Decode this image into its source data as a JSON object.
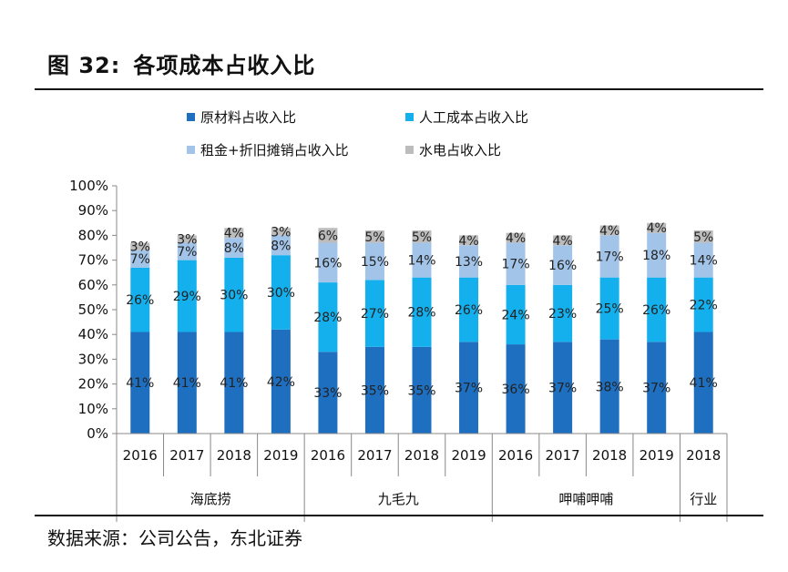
{
  "header": {
    "figure_no": "图 32:",
    "title": "各项成本占收入比"
  },
  "footer": {
    "source": "数据来源：公司公告，东北证券"
  },
  "chart_data": {
    "type": "bar",
    "stacked": true,
    "ylim": [
      0,
      100
    ],
    "yticks": [
      "0%",
      "10%",
      "20%",
      "30%",
      "40%",
      "50%",
      "60%",
      "70%",
      "80%",
      "90%",
      "100%"
    ],
    "categories": [
      "2016",
      "2017",
      "2018",
      "2019",
      "2016",
      "2017",
      "2018",
      "2019",
      "2016",
      "2017",
      "2018",
      "2019",
      "2018"
    ],
    "groups": [
      {
        "label": "海底捞",
        "count": 4
      },
      {
        "label": "九毛九",
        "count": 4
      },
      {
        "label": "呷哺呷哺",
        "count": 4
      },
      {
        "label": "行业",
        "count": 1
      }
    ],
    "legend_position": "top",
    "series": [
      {
        "name": "原材料占收入比",
        "color": "#1f6fc0",
        "values": [
          41,
          41,
          41,
          42,
          33,
          35,
          35,
          37,
          36,
          37,
          38,
          37,
          41
        ],
        "labels": [
          "41%",
          "41%",
          "41%",
          "42%",
          "33%",
          "35%",
          "35%",
          "37%",
          "36%",
          "37%",
          "38%",
          "37%",
          "41%"
        ]
      },
      {
        "name": "人工成本占收入比",
        "color": "#14b0ee",
        "values": [
          26,
          29,
          30,
          30,
          28,
          27,
          28,
          26,
          24,
          23,
          25,
          26,
          22
        ],
        "labels": [
          "26%",
          "29%",
          "30%",
          "30%",
          "28%",
          "27%",
          "28%",
          "26%",
          "24%",
          "23%",
          "25%",
          "26%",
          "22%"
        ]
      },
      {
        "name": "租金+折旧摊销占收入比",
        "color": "#a3c4e9",
        "values": [
          7,
          7,
          8,
          8,
          16,
          15,
          14,
          13,
          17,
          16,
          17,
          18,
          14
        ],
        "labels": [
          "7%",
          "7%",
          "8%",
          "8%",
          "16%",
          "15%",
          "14%",
          "13%",
          "17%",
          "16%",
          "17%",
          "18%",
          "14%"
        ]
      },
      {
        "name": "水电占收入比",
        "color": "#bcbcbc",
        "values": [
          3,
          3,
          4,
          3,
          6,
          5,
          5,
          4,
          4,
          4,
          4,
          4,
          5
        ],
        "labels": [
          "3%",
          "3%",
          "4%",
          "3%",
          "6%",
          "5%",
          "5%",
          "4%",
          "4%",
          "4%",
          "4%",
          "4%",
          "5%"
        ]
      }
    ]
  }
}
